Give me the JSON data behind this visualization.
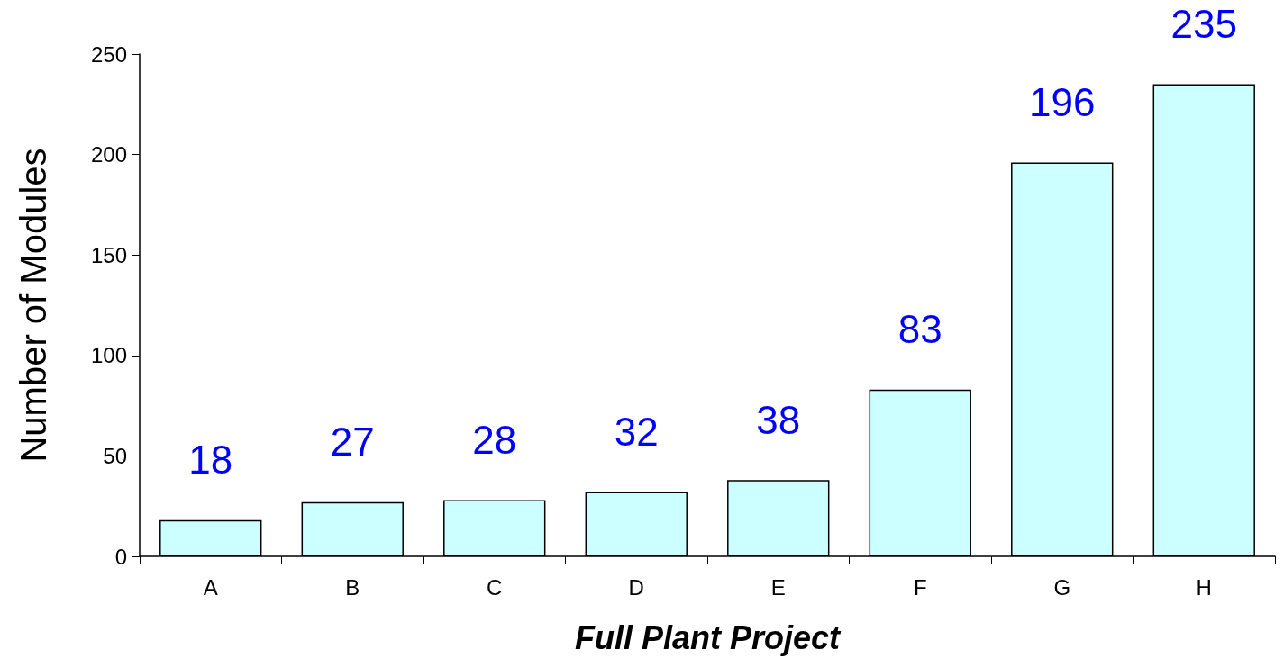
{
  "chart_data": {
    "type": "bar",
    "xlabel": "Full Plant Project",
    "ylabel": "Number of Modules",
    "categories": [
      "A",
      "B",
      "C",
      "D",
      "E",
      "F",
      "G",
      "H"
    ],
    "values": [
      18,
      27,
      28,
      32,
      38,
      83,
      196,
      235
    ],
    "color": "#ccffff",
    "ylim": [
      0,
      250
    ],
    "yticks": [
      0,
      50,
      100,
      150,
      200,
      250
    ],
    "data_labels": true
  }
}
